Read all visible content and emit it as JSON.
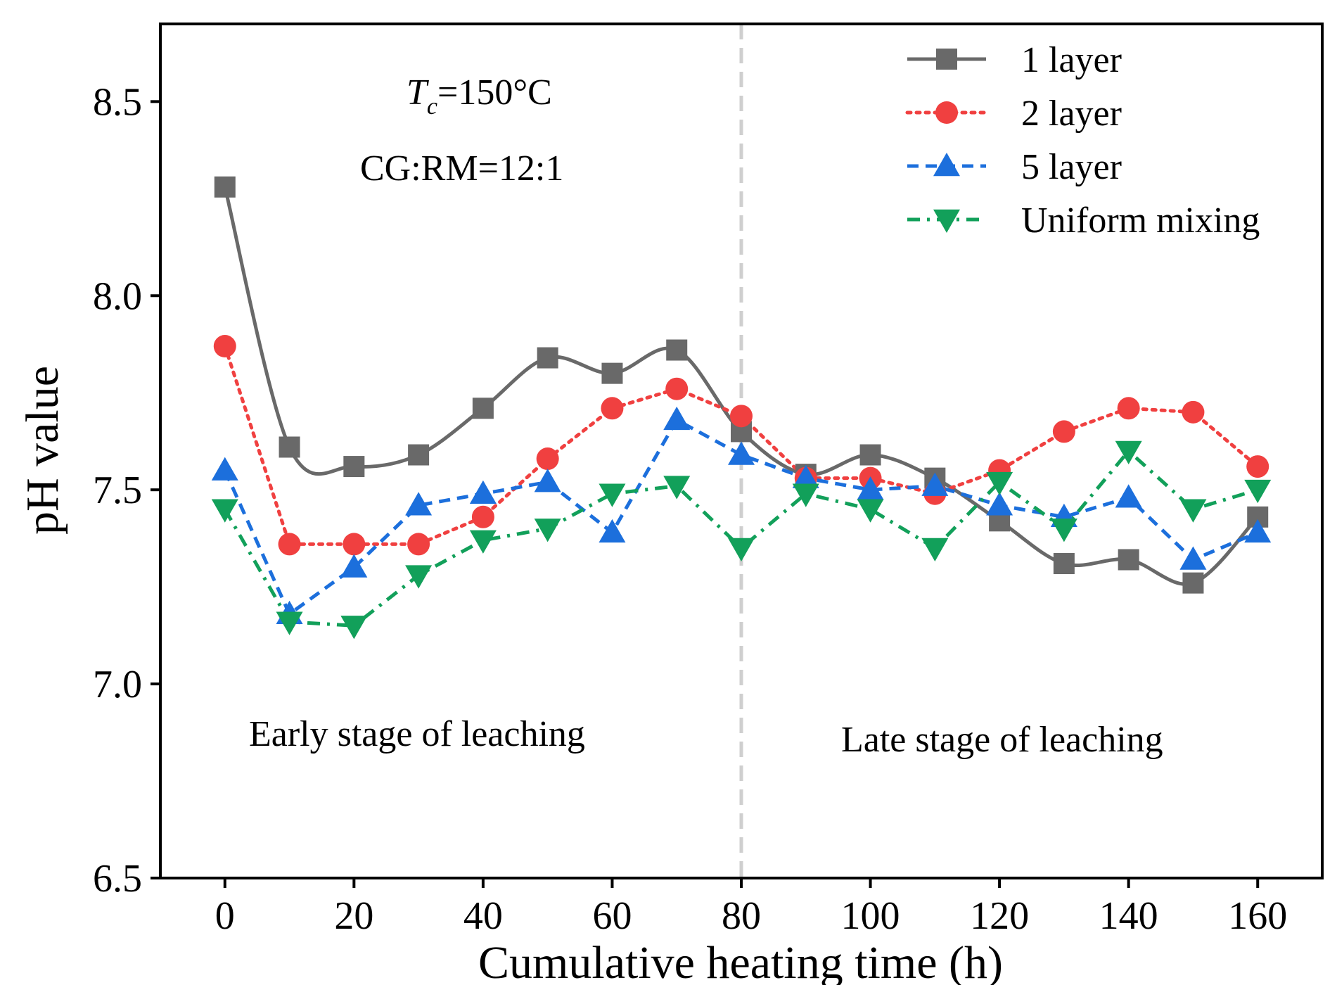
{
  "chart_data": {
    "type": "line",
    "title": "",
    "xlabel": "Cumulative heating time (h)",
    "ylabel": "pH value",
    "xlim": [
      -10,
      170
    ],
    "ylim": [
      6.5,
      8.7
    ],
    "xticks": [
      0,
      20,
      40,
      60,
      80,
      100,
      120,
      140,
      160
    ],
    "yticks": [
      6.5,
      7.0,
      7.5,
      8.0,
      8.5
    ],
    "ytick_labels": [
      "6.5",
      "7.0",
      "7.5",
      "8.0",
      "8.5"
    ],
    "grid": false,
    "legend_position": "top-right",
    "x": [
      0,
      10,
      20,
      30,
      40,
      50,
      60,
      70,
      80,
      90,
      100,
      110,
      120,
      130,
      140,
      150,
      160
    ],
    "series": [
      {
        "name": "1 layer",
        "color": "#696969",
        "marker": "square",
        "dash": "solid",
        "smooth": true,
        "values": [
          8.28,
          7.61,
          7.56,
          7.59,
          7.71,
          7.84,
          7.8,
          7.86,
          7.65,
          7.54,
          7.59,
          7.53,
          7.42,
          7.31,
          7.32,
          7.26,
          7.43
        ]
      },
      {
        "name": "2 layer",
        "color": "#f04040",
        "marker": "circle",
        "dash": "dotted",
        "smooth": false,
        "values": [
          7.87,
          7.36,
          7.36,
          7.36,
          7.43,
          7.58,
          7.71,
          7.76,
          7.69,
          7.53,
          7.53,
          7.49,
          7.55,
          7.65,
          7.71,
          7.7,
          7.56
        ]
      },
      {
        "name": "5 layer",
        "color": "#1c6fdc",
        "marker": "triangle-up",
        "dash": "dashed",
        "smooth": false,
        "values": [
          7.55,
          7.18,
          7.3,
          7.46,
          7.49,
          7.52,
          7.39,
          7.68,
          7.59,
          7.53,
          7.5,
          7.51,
          7.46,
          7.43,
          7.48,
          7.32,
          7.39
        ]
      },
      {
        "name": "Uniform mixing",
        "color": "#12a05a",
        "marker": "triangle-down",
        "dash": "dashdot",
        "smooth": false,
        "values": [
          7.45,
          7.16,
          7.15,
          7.28,
          7.37,
          7.4,
          7.49,
          7.51,
          7.35,
          7.49,
          7.45,
          7.35,
          7.52,
          7.4,
          7.6,
          7.45,
          7.5
        ]
      }
    ],
    "annotations": {
      "tc_symbol": "T",
      "tc_subscript": "c",
      "tc_value": "=150°C",
      "ratio": "CG:RM=12:1",
      "early_stage": "Early stage of leaching",
      "late_stage": "Late stage of leaching"
    },
    "vline_x": 80,
    "vline_color": "#cfcfcf"
  }
}
